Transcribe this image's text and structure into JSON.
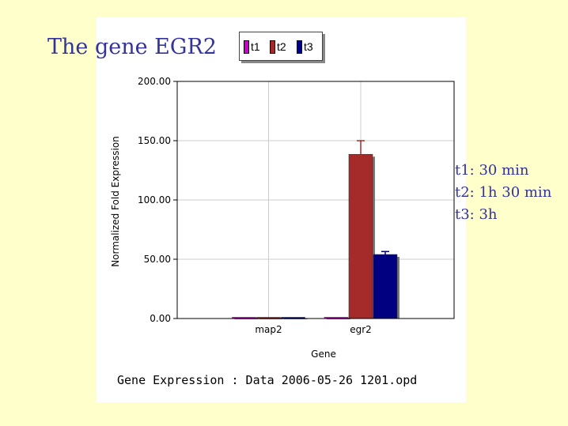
{
  "slide": {
    "title": "The gene EGR2",
    "notes": [
      "t1: 30 min",
      "t2: 1h 30 min",
      "t3: 3h"
    ]
  },
  "caption": "Gene Expression : Data 2006-05-26  1201.opd",
  "colors": {
    "t1": "#cc00cc",
    "t2": "#a52a2a",
    "t3": "#000080",
    "background": "#ffffcc",
    "title_text": "#333399"
  },
  "chart_data": {
    "type": "bar",
    "categories": [
      "map2",
      "egr2"
    ],
    "series": [
      {
        "name": "t1",
        "values": [
          1,
          1
        ],
        "errors": [
          0,
          0
        ]
      },
      {
        "name": "t2",
        "values": [
          1,
          138.5
        ],
        "errors": [
          0,
          11.5
        ]
      },
      {
        "name": "t3",
        "values": [
          1,
          54
        ],
        "errors": [
          0,
          2.5
        ]
      }
    ],
    "xlabel": "Gene",
    "ylabel": "Normalized Fold Expression",
    "ylim": [
      0,
      200
    ],
    "yticks": [
      "0.00",
      "50.00",
      "100.00",
      "150.00",
      "200.00"
    ],
    "grid": true,
    "legend": "top"
  }
}
